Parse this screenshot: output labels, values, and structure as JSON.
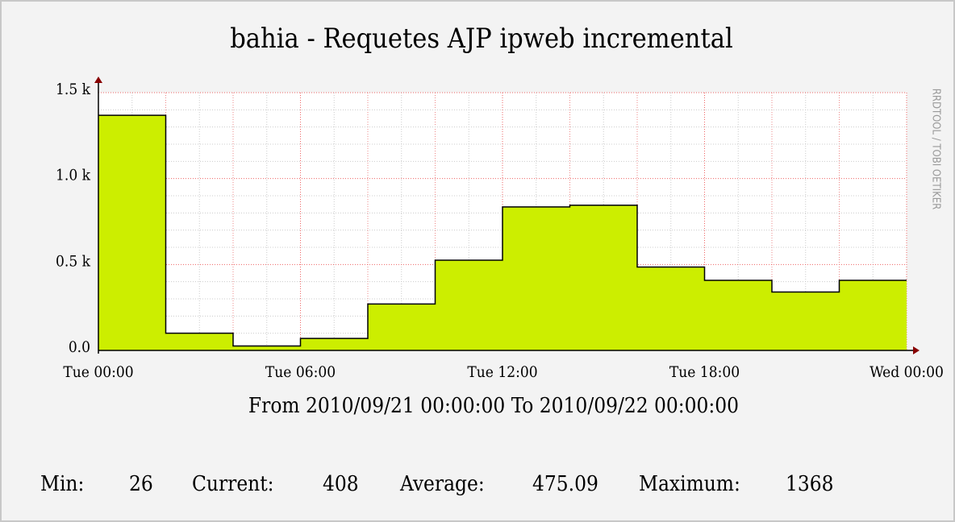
{
  "chart_data": {
    "type": "step-area",
    "title": "bahia - Requetes AJP ipweb incremental",
    "subtitle": "From 2010/09/21 00:00:00 To 2010/09/22 00:00:00",
    "side_label": "RRDTOOL / TOBI OETIKER",
    "x": [
      0,
      2,
      4,
      6,
      8,
      10,
      12,
      14,
      16,
      18,
      20,
      22
    ],
    "values": [
      1368,
      100,
      26,
      70,
      270,
      525,
      835,
      845,
      485,
      408,
      340,
      408
    ],
    "color": "#ccee00",
    "xlim": [
      0,
      24
    ],
    "xticks": [
      {
        "value": 0,
        "label": "Tue 00:00"
      },
      {
        "value": 6,
        "label": "Tue 06:00"
      },
      {
        "value": 12,
        "label": "Tue 12:00"
      },
      {
        "value": 18,
        "label": "Tue 18:00"
      },
      {
        "value": 24,
        "label": "Wed 00:00"
      }
    ],
    "ylim": [
      0,
      1500
    ],
    "yticks": [
      {
        "value": 0,
        "label": "0.0"
      },
      {
        "value": 500,
        "label": "0.5 k"
      },
      {
        "value": 1000,
        "label": "1.0 k"
      },
      {
        "value": 1500,
        "label": "1.5 k"
      }
    ],
    "grid": true,
    "stats": [
      {
        "label": "Min:",
        "value": 26
      },
      {
        "label": "Current:",
        "value": 408
      },
      {
        "label": "Average:",
        "value": 475.09
      },
      {
        "label": "Maximum:",
        "value": 1368
      }
    ]
  }
}
